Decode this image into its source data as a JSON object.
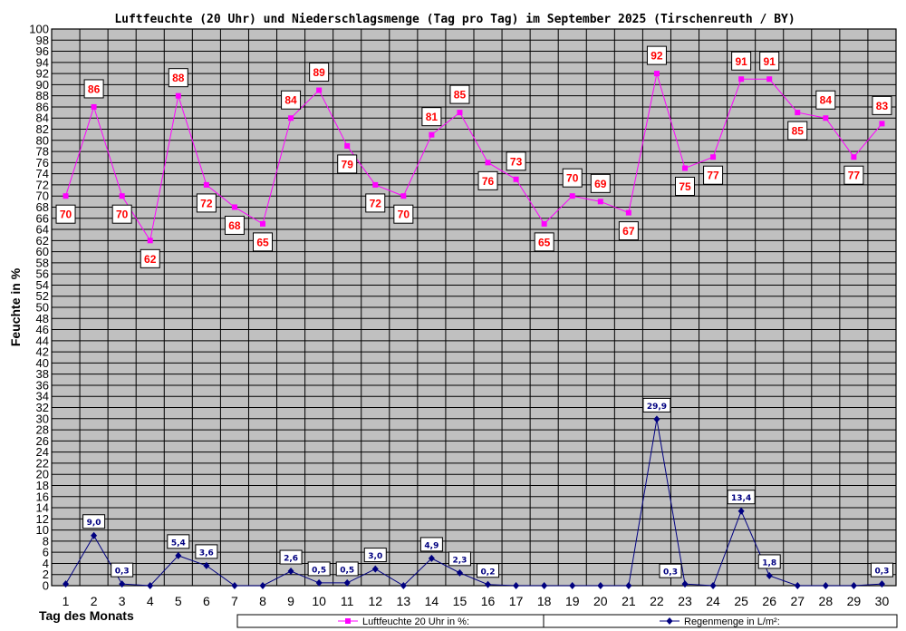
{
  "chart_data": {
    "type": "line",
    "title": "Luftfeuchte (20 Uhr) und Niederschlagsmenge (Tag pro Tag) im September 2025 (Tirschenreuth / BY)",
    "xlabel": "Tag des Monats",
    "ylabel": "Feuchte in %",
    "ylim": [
      0,
      100
    ],
    "ytick_step": 2,
    "grid": true,
    "legend_position": "bottom",
    "x": [
      1,
      2,
      3,
      4,
      5,
      6,
      7,
      8,
      9,
      10,
      11,
      12,
      13,
      14,
      15,
      16,
      17,
      18,
      19,
      20,
      21,
      22,
      23,
      24,
      25,
      26,
      27,
      28,
      29,
      30
    ],
    "series": [
      {
        "name": "Luftfeuchte 20 Uhr in %:",
        "color": "#ff00ff",
        "label_color": "#ff0000",
        "marker": "square",
        "values": [
          70,
          86,
          70,
          62,
          88,
          72,
          68,
          65,
          84,
          89,
          79,
          72,
          70,
          81,
          85,
          76,
          73,
          65,
          70,
          69,
          67,
          92,
          75,
          77,
          91,
          91,
          85,
          84,
          77,
          83
        ],
        "labels": [
          "70",
          "86",
          "70",
          "62",
          "88",
          "72",
          "68",
          "65",
          "84",
          "89",
          "79",
          "72",
          "70",
          "81",
          "85",
          "76",
          "73",
          "65",
          "70",
          "69",
          "67",
          "92",
          "75",
          "77",
          "91",
          "91",
          "85",
          "84",
          "77",
          "83"
        ]
      },
      {
        "name": "Regenmenge in L/m²:",
        "color": "#000080",
        "label_color": "#0000cc",
        "marker": "diamond",
        "values": [
          0.3,
          9.0,
          0.3,
          0,
          5.4,
          3.6,
          0,
          0,
          2.6,
          0.5,
          0.5,
          3.0,
          0,
          4.9,
          2.3,
          0.2,
          0,
          0,
          0,
          0,
          0,
          29.9,
          0.3,
          0,
          13.4,
          1.8,
          0,
          0,
          0,
          0.3
        ],
        "labels": [
          "",
          "9,0",
          "0,3",
          "",
          "5,4",
          "3,6",
          "",
          "",
          "2,6",
          "0,5",
          "0,5",
          "3,0",
          "",
          "4,9",
          "2,3",
          "0,2",
          "",
          "",
          "",
          "",
          "",
          "29,9",
          "0,3",
          "",
          "13,4",
          "1,8",
          "",
          "",
          "",
          "0,3"
        ]
      }
    ]
  },
  "colors": {
    "plot_background": "#c0c0c0",
    "grid": "#000000"
  }
}
